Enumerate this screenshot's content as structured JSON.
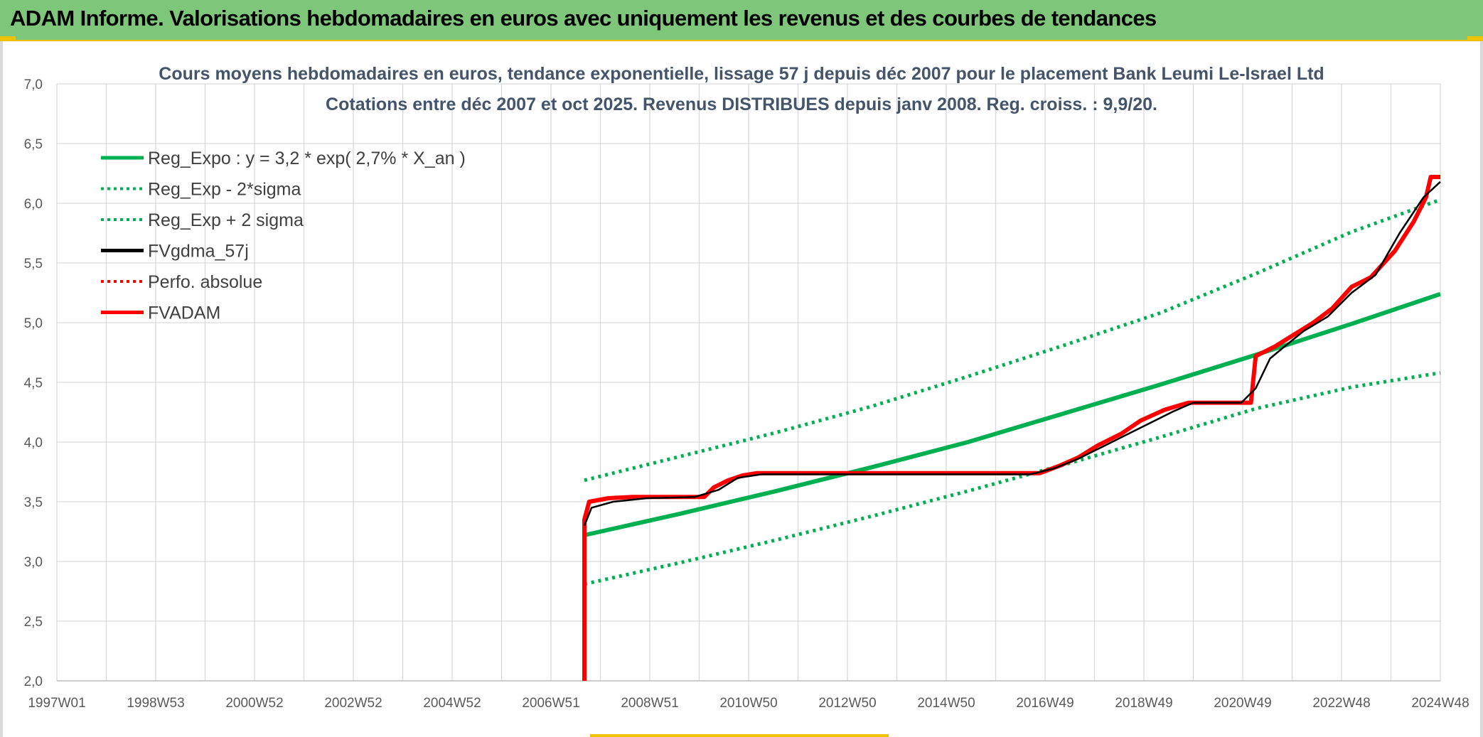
{
  "header": {
    "title": "ADAM Informe. Valorisations hebdomadaires en euros avec uniquement les revenus et des courbes de tendances"
  },
  "colors": {
    "banner": "#7dc67a",
    "accent": "#f2c200",
    "green": "#00b050",
    "black": "#000000",
    "red": "#ff0000",
    "grid": "#d9d9d9"
  },
  "chart_data": {
    "type": "line",
    "title": "Cours moyens hebdomadaires en euros, tendance exponentielle, lissage 57 j depuis déc 2007 pour le placement Bank Leumi Le-Israel Ltd",
    "subtitle": "Cotations entre déc 2007 et oct 2025. Revenus DISTRIBUES depuis janv 2008. Reg. croiss. : 9,9/20.",
    "xlabel": "",
    "ylabel": "",
    "x_tick_labels": [
      "1997W01",
      "1998W53",
      "2000W52",
      "2002W52",
      "2004W52",
      "2006W51",
      "2008W51",
      "2010W50",
      "2012W50",
      "2014W50",
      "2016W49",
      "2018W49",
      "2020W49",
      "2022W48",
      "2024W48"
    ],
    "x_range_years": [
      1997.0,
      2025.85
    ],
    "y_ticks": [
      "2,0",
      "2,5",
      "3,0",
      "3,5",
      "4,0",
      "4,5",
      "5,0",
      "5,5",
      "6,0",
      "6,5",
      "7,0"
    ],
    "ylim": [
      2.0,
      7.0
    ],
    "grid": true,
    "legend_position": "top-left",
    "series": [
      {
        "name": "Reg_Expo : y = 3,2 * exp( 2,7% *  X_an )",
        "color": "#00b050",
        "style": "solid",
        "points": [
          [
            2008.0,
            3.22
          ],
          [
            2010.0,
            3.4
          ],
          [
            2012.0,
            3.59
          ],
          [
            2014.0,
            3.79
          ],
          [
            2016.0,
            4.0
          ],
          [
            2018.0,
            4.24
          ],
          [
            2020.0,
            4.48
          ],
          [
            2022.0,
            4.73
          ],
          [
            2024.0,
            4.99
          ],
          [
            2025.85,
            5.24
          ]
        ]
      },
      {
        "name": "Reg_Exp - 2*sigma",
        "color": "#00b050",
        "style": "dotted",
        "points": [
          [
            2008.0,
            2.81
          ],
          [
            2010.0,
            2.99
          ],
          [
            2012.0,
            3.18
          ],
          [
            2014.0,
            3.38
          ],
          [
            2016.0,
            3.59
          ],
          [
            2018.0,
            3.81
          ],
          [
            2020.0,
            4.04
          ],
          [
            2022.0,
            4.28
          ],
          [
            2024.0,
            4.46
          ],
          [
            2025.85,
            4.58
          ]
        ]
      },
      {
        "name": "Reg_Exp + 2 sigma",
        "color": "#00b050",
        "style": "dotted",
        "points": [
          [
            2008.0,
            3.68
          ],
          [
            2010.0,
            3.88
          ],
          [
            2012.0,
            4.08
          ],
          [
            2014.0,
            4.3
          ],
          [
            2016.0,
            4.55
          ],
          [
            2018.0,
            4.81
          ],
          [
            2020.0,
            5.08
          ],
          [
            2022.0,
            5.41
          ],
          [
            2024.0,
            5.76
          ],
          [
            2025.85,
            6.03
          ]
        ]
      },
      {
        "name": "FVgdma_57j",
        "color": "#000000",
        "style": "solid",
        "points": [
          [
            2008.0,
            3.3
          ],
          [
            2008.15,
            3.45
          ],
          [
            2008.6,
            3.5
          ],
          [
            2009.3,
            3.53
          ],
          [
            2010.3,
            3.54
          ],
          [
            2010.8,
            3.6
          ],
          [
            2011.2,
            3.7
          ],
          [
            2011.7,
            3.73
          ],
          [
            2017.3,
            3.73
          ],
          [
            2017.8,
            3.78
          ],
          [
            2018.3,
            3.86
          ],
          [
            2018.8,
            3.96
          ],
          [
            2019.3,
            4.06
          ],
          [
            2019.8,
            4.16
          ],
          [
            2020.3,
            4.26
          ],
          [
            2020.7,
            4.33
          ],
          [
            2021.7,
            4.33
          ],
          [
            2022.0,
            4.45
          ],
          [
            2022.3,
            4.7
          ],
          [
            2022.6,
            4.8
          ],
          [
            2023.0,
            4.93
          ],
          [
            2023.5,
            5.05
          ],
          [
            2024.0,
            5.25
          ],
          [
            2024.5,
            5.4
          ],
          [
            2025.0,
            5.75
          ],
          [
            2025.5,
            6.05
          ],
          [
            2025.85,
            6.18
          ]
        ]
      },
      {
        "name": "Perfo. absolue",
        "color": "#ff0000",
        "style": "dotted",
        "points": []
      },
      {
        "name": "FVADAM",
        "color": "#ff0000",
        "style": "solid",
        "points": [
          [
            2008.0,
            2.0
          ],
          [
            2008.0,
            3.35
          ],
          [
            2008.1,
            3.5
          ],
          [
            2008.5,
            3.53
          ],
          [
            2009.0,
            3.54
          ],
          [
            2010.5,
            3.54
          ],
          [
            2010.7,
            3.62
          ],
          [
            2011.0,
            3.68
          ],
          [
            2011.3,
            3.72
          ],
          [
            2011.6,
            3.74
          ],
          [
            2017.5,
            3.74
          ],
          [
            2017.9,
            3.8
          ],
          [
            2018.3,
            3.87
          ],
          [
            2018.7,
            3.97
          ],
          [
            2019.2,
            4.07
          ],
          [
            2019.6,
            4.18
          ],
          [
            2020.1,
            4.27
          ],
          [
            2020.6,
            4.33
          ],
          [
            2021.9,
            4.33
          ],
          [
            2022.0,
            4.72
          ],
          [
            2022.4,
            4.8
          ],
          [
            2022.8,
            4.9
          ],
          [
            2023.2,
            5.0
          ],
          [
            2023.6,
            5.12
          ],
          [
            2024.0,
            5.3
          ],
          [
            2024.4,
            5.38
          ],
          [
            2024.9,
            5.6
          ],
          [
            2025.3,
            5.85
          ],
          [
            2025.55,
            6.05
          ],
          [
            2025.65,
            6.22
          ],
          [
            2025.85,
            6.22
          ]
        ]
      }
    ]
  }
}
